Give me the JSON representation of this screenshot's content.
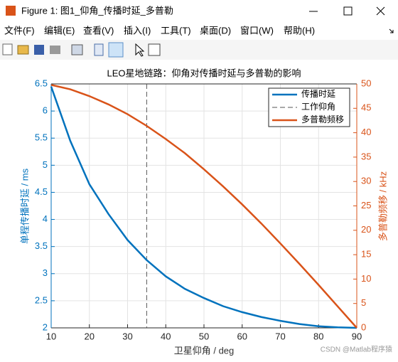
{
  "window": {
    "title": "Figure 1: 图1_仰角_传播时延_多普勒",
    "menu": [
      "文件(F)",
      "编辑(E)",
      "查看(V)",
      "插入(I)",
      "工具(T)",
      "桌面(D)",
      "窗口(W)",
      "帮助(H)"
    ]
  },
  "chart_data": {
    "type": "line",
    "title": "LEO星地链路：仰角对传播时延与多普勒的影响",
    "xlabel": "卫星仰角 / deg",
    "ylabel": "单程传播时延 / ms",
    "y2label": "多普勒频移 / kHz",
    "x": [
      10,
      15,
      20,
      25,
      30,
      35,
      40,
      45,
      50,
      55,
      60,
      65,
      70,
      75,
      80,
      85,
      90
    ],
    "series": [
      {
        "name": "传播时延",
        "color": "#0072bd",
        "values": [
          6.45,
          5.45,
          4.65,
          4.1,
          3.62,
          3.25,
          2.95,
          2.72,
          2.55,
          2.4,
          2.29,
          2.2,
          2.13,
          2.07,
          2.03,
          2.01,
          2.0
        ]
      },
      {
        "name": "多普勒频移",
        "color": "#d95319",
        "axis": "y2",
        "values": [
          49.8,
          48.9,
          47.5,
          45.8,
          43.8,
          41.4,
          38.7,
          35.8,
          32.5,
          29.0,
          25.3,
          21.4,
          17.3,
          13.1,
          8.8,
          4.4,
          0
        ]
      }
    ],
    "vline": {
      "name": "工作仰角",
      "x": 35,
      "color": "#555555"
    },
    "xlim": [
      10,
      90
    ],
    "xticks": [
      10,
      20,
      30,
      40,
      50,
      60,
      70,
      80,
      90
    ],
    "ylim": [
      2,
      6.5
    ],
    "yticks": [
      2,
      2.5,
      3,
      3.5,
      4,
      4.5,
      5,
      5.5,
      6,
      6.5
    ],
    "y2lim": [
      0,
      50
    ],
    "y2ticks": [
      0,
      5,
      10,
      15,
      20,
      25,
      30,
      35,
      40,
      45,
      50
    ],
    "grid": true,
    "legend": "northeast"
  },
  "watermark": "CSDN @Matlab程序猿"
}
